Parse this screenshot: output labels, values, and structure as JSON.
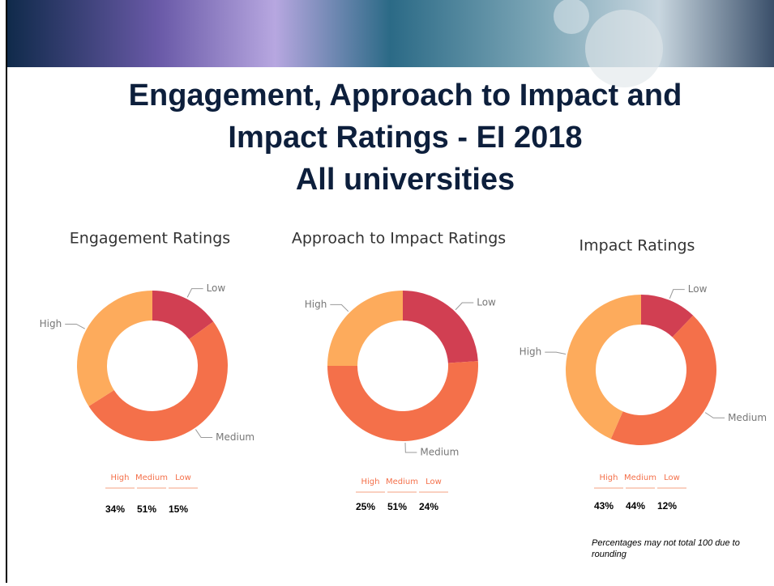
{
  "slide_title": [
    "Engagement, Approach to Impact and",
    "Impact Ratings - EI 2018",
    "All universities"
  ],
  "chart_data": [
    {
      "type": "donut",
      "title": "Engagement Ratings",
      "categories": [
        "Low",
        "Medium",
        "High"
      ],
      "values": [
        15,
        51,
        34
      ],
      "value_labels": [
        "15%",
        "51%",
        "34%"
      ],
      "colors": [
        "#d13f52",
        "#f4704a",
        "#fdab5c"
      ]
    },
    {
      "type": "donut",
      "title": "Approach to Impact Ratings",
      "categories": [
        "Low",
        "Medium",
        "High"
      ],
      "values": [
        24,
        51,
        25
      ],
      "value_labels": [
        "24%",
        "51%",
        "25%"
      ],
      "colors": [
        "#d13f52",
        "#f4704a",
        "#fdab5c"
      ]
    },
    {
      "type": "donut",
      "title": "Impact Ratings",
      "categories": [
        "Low",
        "Medium",
        "High"
      ],
      "values": [
        12,
        44,
        43
      ],
      "value_labels": [
        "12%",
        "44%",
        "43%"
      ],
      "colors": [
        "#d13f52",
        "#f4704a",
        "#fdab5c"
      ]
    }
  ],
  "footnote": "Percentages may not total 100 due to rounding"
}
